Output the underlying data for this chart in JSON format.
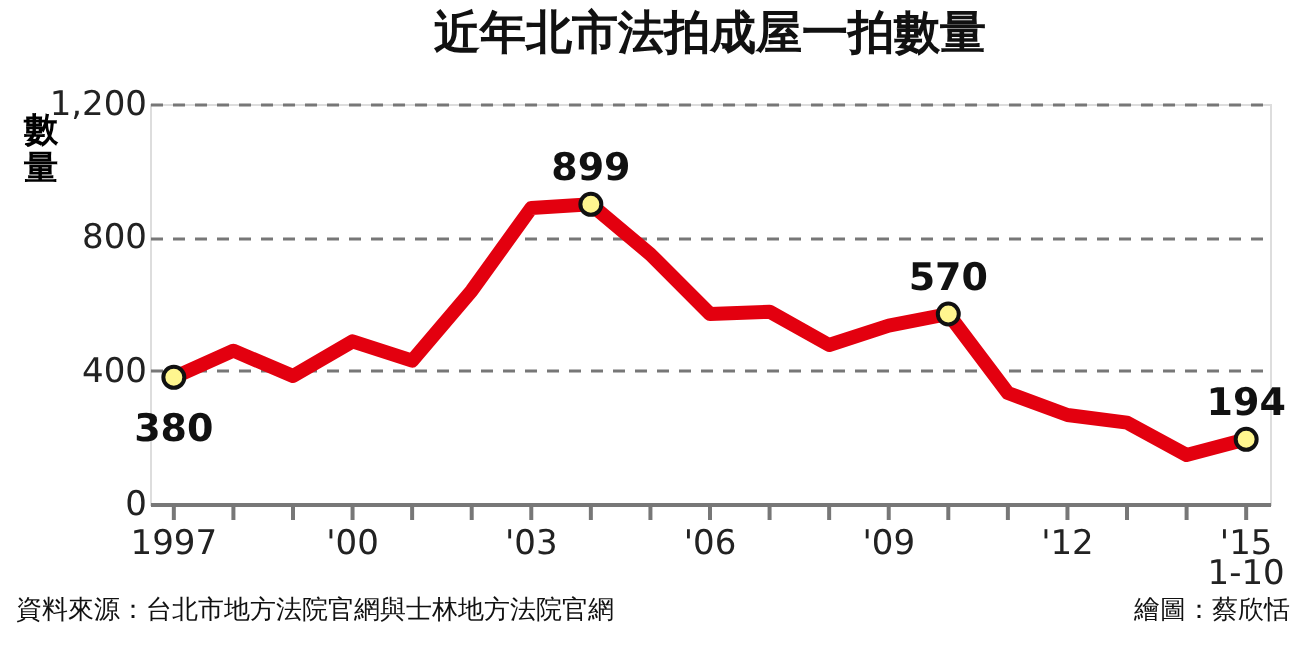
{
  "chart_data": {
    "type": "line",
    "title": "近年北市法拍成屋一拍數量",
    "ylabel": "數量",
    "x": [
      1997,
      1998,
      1999,
      2000,
      2001,
      2002,
      2003,
      2004,
      2005,
      2006,
      2007,
      2008,
      2009,
      2010,
      2011,
      2012,
      2013,
      2014,
      2015
    ],
    "series": [
      {
        "type": "line",
        "color": "#e3000f",
        "values": [
          380,
          460,
          384,
          488,
          430,
          640,
          888,
          899,
          749,
          570,
          577,
          477,
          535,
          570,
          333,
          267,
          244,
          147,
          194
        ]
      },
      {
        "type": "scatter",
        "color": "#fff68f",
        "x": [
          1997,
          2004,
          2010,
          2015
        ],
        "values": [
          380,
          899,
          570,
          194
        ],
        "value_labels": [
          "380",
          "899",
          "570",
          "194"
        ]
      }
    ],
    "xlim": [
      1996.6,
      2015.4
    ],
    "xticks": [
      {
        "value": 1997,
        "label": "1997"
      },
      {
        "value": 1998,
        "label": null
      },
      {
        "value": 1999,
        "label": null
      },
      {
        "value": 2000,
        "label": "'00"
      },
      {
        "value": 2001,
        "label": null
      },
      {
        "value": 2002,
        "label": null
      },
      {
        "value": 2003,
        "label": "'03"
      },
      {
        "value": 2004,
        "label": null
      },
      {
        "value": 2005,
        "label": null
      },
      {
        "value": 2006,
        "label": "'06"
      },
      {
        "value": 2007,
        "label": null
      },
      {
        "value": 2008,
        "label": null
      },
      {
        "value": 2009,
        "label": "'09"
      },
      {
        "value": 2010,
        "label": null
      },
      {
        "value": 2011,
        "label": null
      },
      {
        "value": 2012,
        "label": "'12"
      },
      {
        "value": 2013,
        "label": null
      },
      {
        "value": 2014,
        "label": null
      },
      {
        "value": 2015,
        "label": "'15\n1-10"
      }
    ],
    "ylim": [
      0,
      1200
    ],
    "yticks": [
      0,
      400,
      800,
      {
        "value": 1200,
        "label": "1,200"
      }
    ],
    "grid": "y",
    "line_style": "solid",
    "annotations": [
      "資料來源：台北市地方法院官網與士林地方法院官網",
      "繪圖：蔡欣恬"
    ]
  }
}
